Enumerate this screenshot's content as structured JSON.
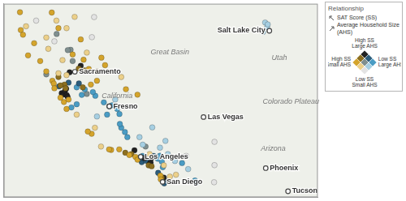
{
  "chart_data": {
    "type": "scatter",
    "xlim": [
      -125,
      -109.5
    ],
    "ylim": [
      31.9,
      42.2
    ],
    "xticks": [],
    "yticks": [],
    "tick_labels": false,
    "grid": false,
    "marker": "circle",
    "series": [
      {
        "color": "#d4a42c",
        "points": [
          [
            -124.2,
            41.75
          ],
          [
            -124.16,
            40.8
          ],
          [
            -124.05,
            40.55
          ],
          [
            -123.8,
            39.45
          ],
          [
            -123.2,
            39.15
          ],
          [
            -122.9,
            38.6
          ],
          [
            -122.6,
            38.1
          ],
          [
            -122.53,
            37.95
          ],
          [
            -122.5,
            37.7
          ],
          [
            -122.03,
            36.97
          ],
          [
            -121.9,
            36.6
          ],
          [
            -121.8,
            37.1
          ],
          [
            -120.66,
            35.28
          ],
          [
            -120.85,
            35.4
          ],
          [
            -119.7,
            34.42
          ],
          [
            -119.8,
            34.45
          ],
          [
            -118.97,
            37.65
          ],
          [
            -118.4,
            37.36
          ],
          [
            -120.18,
            39.33
          ],
          [
            -120.0,
            38.93
          ],
          [
            -121.06,
            39.22
          ],
          [
            -120.8,
            38.73
          ],
          [
            -122.63,
            41.73
          ],
          [
            -122.3,
            40.9
          ],
          [
            -121.6,
            39.5
          ],
          [
            -118.5,
            34.05
          ],
          [
            -118.4,
            33.9
          ],
          [
            -117.27,
            33.05
          ],
          [
            -117.25,
            32.85
          ],
          [
            -122.2,
            37.2
          ],
          [
            -120.4,
            38.1
          ],
          [
            -120.7,
            37.9
          ],
          [
            -121.2,
            40.3
          ],
          [
            -123.5,
            40.1
          ],
          [
            -119.3,
            34.45
          ],
          [
            -118.8,
            34.15
          ]
        ]
      },
      {
        "color": "#ecd08a",
        "points": [
          [
            -123.9,
            41.0
          ],
          [
            -122.4,
            41.3
          ],
          [
            -121.9,
            40.9
          ],
          [
            -122.8,
            39.8
          ],
          [
            -122.1,
            39.2
          ],
          [
            -120.9,
            39.6
          ],
          [
            -120.4,
            38.6
          ],
          [
            -121.9,
            38.4
          ],
          [
            -122.3,
            38.5
          ],
          [
            -120.5,
            35.6
          ],
          [
            -120.2,
            34.6
          ],
          [
            -121.4,
            36.3
          ],
          [
            -119.2,
            38.3
          ],
          [
            -117.8,
            34.2
          ],
          [
            -116.8,
            33.0
          ],
          [
            -116.5,
            33.1
          ],
          [
            -122.9,
            40.4
          ],
          [
            -121.5,
            41.5
          ],
          [
            -117.1,
            33.6
          ]
        ]
      },
      {
        "color": "#8c6f20",
        "points": [
          [
            -122.0,
            37.9
          ],
          [
            -122.2,
            37.85
          ],
          [
            -121.95,
            37.7
          ],
          [
            -117.85,
            33.6
          ],
          [
            -117.7,
            33.55
          ],
          [
            -121.3,
            38.75
          ],
          [
            -121.0,
            38.65
          ],
          [
            -118.7,
            34.2
          ],
          [
            -119.0,
            34.27
          ],
          [
            -117.2,
            32.95
          ],
          [
            -122.3,
            38.3
          ],
          [
            -121.1,
            37.75
          ]
        ]
      },
      {
        "color": "#222222",
        "points": [
          [
            -122.14,
            37.44
          ],
          [
            -122.05,
            37.37
          ],
          [
            -121.98,
            37.55
          ],
          [
            -121.89,
            37.34
          ],
          [
            -121.85,
            37.25
          ],
          [
            -121.92,
            37.68
          ],
          [
            -117.79,
            33.68
          ],
          [
            -117.75,
            33.75
          ],
          [
            -117.1,
            32.95
          ],
          [
            -121.75,
            38.55
          ],
          [
            -121.2,
            38.9
          ],
          [
            -118.55,
            34.4
          ],
          [
            -118.05,
            33.98
          ],
          [
            -117.7,
            34.0
          ]
        ]
      },
      {
        "color": "#2c5d7c",
        "points": [
          [
            -118.24,
            34.05
          ],
          [
            -118.19,
            33.77
          ],
          [
            -118.3,
            33.95
          ],
          [
            -118.1,
            34.0
          ],
          [
            -117.91,
            33.84
          ],
          [
            -121.29,
            37.96
          ],
          [
            -121.8,
            38.0
          ],
          [
            -122.27,
            37.8
          ],
          [
            -117.08,
            32.64
          ],
          [
            -117.6,
            34.1
          ],
          [
            -119.79,
            36.74
          ],
          [
            -118.0,
            33.85
          ],
          [
            -117.38,
            33.2
          ]
        ]
      },
      {
        "color": "#4a9cc4",
        "points": [
          [
            -121.0,
            37.64
          ],
          [
            -120.48,
            37.3
          ],
          [
            -120.06,
            36.95
          ],
          [
            -119.65,
            36.8
          ],
          [
            -119.29,
            36.33
          ],
          [
            -119.4,
            36.6
          ],
          [
            -119.02,
            35.37
          ],
          [
            -119.2,
            35.6
          ],
          [
            -119.27,
            35.8
          ],
          [
            -121.66,
            36.68
          ],
          [
            -121.4,
            36.85
          ],
          [
            -117.4,
            33.95
          ],
          [
            -117.29,
            34.11
          ],
          [
            -117.5,
            34.05
          ],
          [
            -117.2,
            33.8
          ],
          [
            -118.2,
            33.95
          ],
          [
            -118.25,
            33.9
          ],
          [
            -118.15,
            34.1
          ],
          [
            -117.65,
            34.06
          ],
          [
            -115.56,
            32.79
          ],
          [
            -115.5,
            32.68
          ],
          [
            -116.2,
            33.72
          ],
          [
            -120.6,
            37.5
          ],
          [
            -118.9,
            35.1
          ],
          [
            -121.4,
            37.75
          ],
          [
            -121.15,
            37.35
          ],
          [
            -119.9,
            36.3
          ],
          [
            -117.15,
            33.5
          ]
        ]
      },
      {
        "color": "#a6cfe2",
        "points": [
          [
            -118.14,
            34.7
          ],
          [
            -117.29,
            34.54
          ],
          [
            -117.02,
            34.9
          ],
          [
            -116.55,
            33.83
          ],
          [
            -117.67,
            35.62
          ],
          [
            -112.1,
            41.2
          ],
          [
            -112.0,
            40.95
          ],
          [
            -112.2,
            40.7
          ],
          [
            -111.97,
            41.1
          ],
          [
            -119.5,
            37.1
          ],
          [
            -120.4,
            36.2
          ],
          [
            -118.3,
            35.1
          ],
          [
            -115.9,
            33.4
          ],
          [
            -116.9,
            34.2
          ]
        ]
      },
      {
        "color": "#e3e3e3",
        "points": [
          [
            -114.6,
            34.85
          ],
          [
            -114.6,
            33.61
          ],
          [
            -120.54,
            41.49
          ],
          [
            -120.65,
            40.42
          ],
          [
            -122.5,
            40.2
          ],
          [
            -116.0,
            34.1
          ],
          [
            -114.62,
            32.7
          ],
          [
            -123.4,
            41.3
          ]
        ]
      },
      {
        "color": "#7f8f8f",
        "points": [
          [
            -121.7,
            39.75
          ],
          [
            -122.39,
            40.59
          ],
          [
            -121.84,
            39.73
          ],
          [
            -120.9,
            37.4
          ],
          [
            -118.0,
            34.6
          ],
          [
            -117.0,
            32.75
          ],
          [
            -121.6,
            39.15
          ],
          [
            -122.9,
            38.44
          ]
        ]
      }
    ],
    "places": [
      {
        "name": "Salt Lake City",
        "lon": -111.89,
        "lat": 40.76,
        "marker": "circle"
      },
      {
        "name": "Sacramento",
        "lon": -121.49,
        "lat": 38.58,
        "marker": "circle"
      },
      {
        "name": "Fresno",
        "lon": -119.79,
        "lat": 36.74,
        "marker": "circle"
      },
      {
        "name": "Los Angeles",
        "lon": -118.24,
        "lat": 34.05,
        "marker": "circle"
      },
      {
        "name": "San Diego",
        "lon": -117.16,
        "lat": 32.72,
        "marker": "circle"
      },
      {
        "name": "Las Vegas",
        "lon": -115.14,
        "lat": 36.17,
        "marker": "circle"
      },
      {
        "name": "Phoenix",
        "lon": -112.07,
        "lat": 33.45,
        "marker": "circle"
      },
      {
        "name": "Tucson",
        "lon": -110.97,
        "lat": 32.22,
        "marker": "circle"
      },
      {
        "name": "Great Basin",
        "lon": -116.8,
        "lat": 39.6
      },
      {
        "name": "Utah",
        "lon": -111.4,
        "lat": 39.3
      },
      {
        "name": "Colorado Plateau",
        "lon": -110.8,
        "lat": 37.0
      },
      {
        "name": "Arizona",
        "lon": -111.7,
        "lat": 34.5
      },
      {
        "name": "California",
        "lon": -119.4,
        "lat": 37.3
      }
    ],
    "legend_box": {
      "title": "Relationship",
      "variables": [
        "SAT Score (SS)",
        "Average Household Size (AHS)"
      ],
      "top": [
        "High SS",
        "Large AHS"
      ],
      "left": [
        "High SS",
        "Small AHS"
      ],
      "right": [
        "Low SS",
        "Large AHS"
      ],
      "bottom": [
        "Low SS",
        "Small AHS"
      ],
      "colors": [
        [
          "#222222",
          "#2c5d7c",
          "#4a9cc4"
        ],
        [
          "#8c6f20",
          "#7f8f8f",
          "#a6cfe2"
        ],
        [
          "#d4a42c",
          "#ecd08a",
          "#e3e3e3"
        ]
      ]
    }
  }
}
